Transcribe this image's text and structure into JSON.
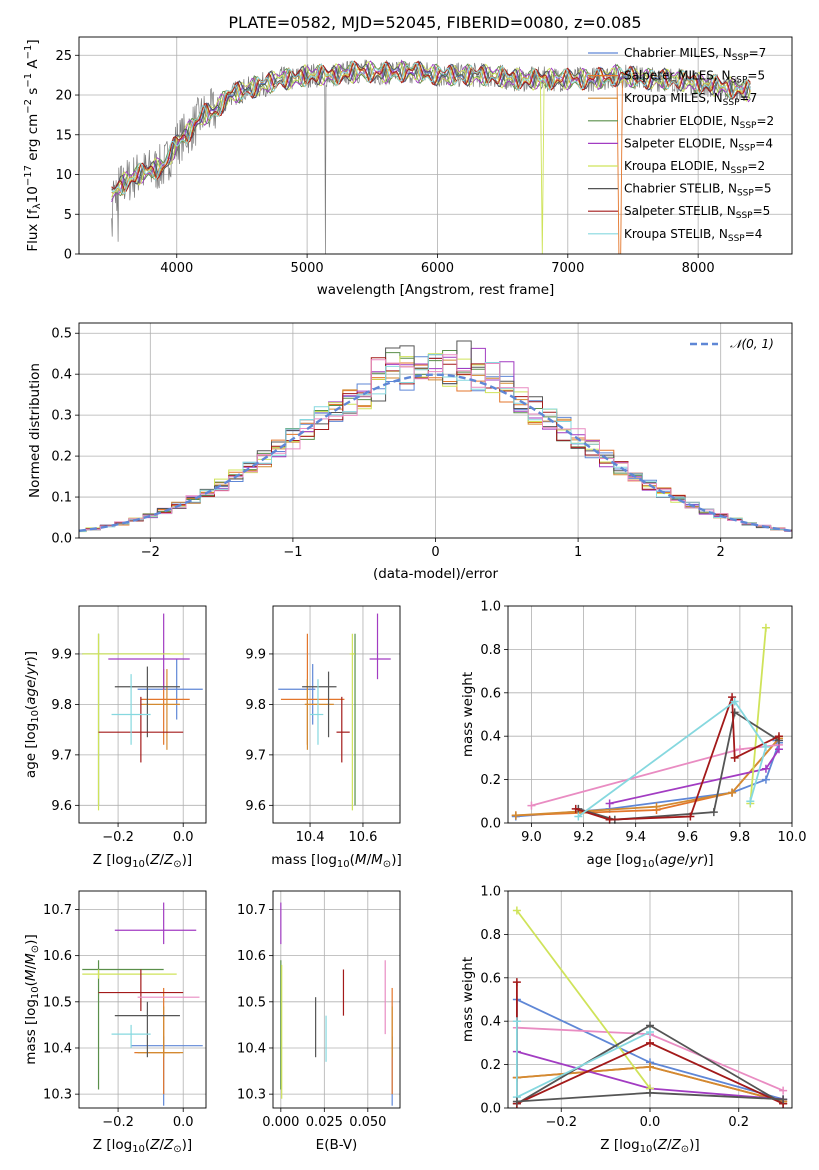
{
  "title": "PLATE=0582, MJD=52045, FIBERID=0080, z=0.085",
  "colors": [
    "#5f87d6",
    "#e3762b",
    "#d38a31",
    "#5a8f4a",
    "#a23cc2",
    "#cfe35a",
    "#555555",
    "#a31a1a",
    "#86d8df",
    "#e98cc2"
  ],
  "models": [
    {
      "name": "Chabrier MILES, N",
      "sub": "SSP",
      "n": "=7",
      "color": "#5f87d6"
    },
    {
      "name": "Salpeter MILES, N",
      "sub": "SSP",
      "n": "=5",
      "color": "#e3762b"
    },
    {
      "name": "Kroupa MILES, N",
      "sub": "SSP",
      "n": "=7",
      "color": "#d38a31"
    },
    {
      "name": "Chabrier ELODIE, N",
      "sub": "SSP",
      "n": "=2",
      "color": "#5a8f4a"
    },
    {
      "name": "Salpeter ELODIE, N",
      "sub": "SSP",
      "n": "=4",
      "color": "#a23cc2"
    },
    {
      "name": "Kroupa ELODIE, N",
      "sub": "SSP",
      "n": "=2",
      "color": "#cfe35a"
    },
    {
      "name": "Chabrier STELIB, N",
      "sub": "SSP",
      "n": "=5",
      "color": "#555555"
    },
    {
      "name": "Salpeter STELIB, N",
      "sub": "SSP",
      "n": "=5",
      "color": "#a31a1a"
    },
    {
      "name": "Kroupa STELIB, N",
      "sub": "SSP",
      "n": "=4",
      "color": "#86d8df"
    }
  ],
  "chart_data": [
    {
      "id": "spectrum",
      "type": "line",
      "xlabel": "wavelength [Angstrom, rest frame]",
      "ylabel": "Flux [f",
      "ylabel_parts": [
        "Flux [f",
        "λ",
        "10",
        "−17",
        " erg cm",
        "−2",
        " s",
        "−1",
        " A",
        "−1",
        "]"
      ],
      "xlim": [
        3250,
        8720
      ],
      "ylim": [
        0,
        27.3
      ],
      "xticks": [
        4000,
        5000,
        6000,
        7000,
        8000
      ],
      "yticks": [
        0,
        5,
        10,
        15,
        20,
        25
      ],
      "continuum": {
        "x": [
          3500,
          3600,
          3700,
          3800,
          3900,
          4000,
          4100,
          4200,
          4300,
          4400,
          4500,
          4600,
          4700,
          4800,
          4900,
          5000,
          5200,
          5400,
          5600,
          5800,
          6000,
          6200,
          6400,
          6600,
          6800,
          7000,
          7200,
          7400,
          7600,
          7800,
          8000,
          8200,
          8400
        ],
        "y": [
          7.5,
          9,
          10,
          10.5,
          11,
          14,
          15.5,
          17.5,
          18,
          20,
          20.5,
          21,
          21.5,
          22,
          22,
          22.5,
          22.5,
          23,
          22.8,
          23,
          22.5,
          22.5,
          22.5,
          22,
          22,
          22,
          22,
          22.5,
          22,
          22,
          21.5,
          21,
          20.5
        ]
      },
      "dips": [
        {
          "x": 5140,
          "y": 0
        },
        {
          "x": 6800,
          "y": 0
        },
        {
          "x": 7400,
          "y": 0
        }
      ]
    },
    {
      "id": "residuals",
      "type": "histogram",
      "xlabel": "(data-model)/error",
      "ylabel": "Normed distribution",
      "xlim": [
        -2.5,
        2.5
      ],
      "ylim": [
        0,
        0.525
      ],
      "xticks": [
        -2,
        -1,
        0,
        1,
        2
      ],
      "yticks": [
        0,
        0.1,
        0.2,
        0.3,
        0.4,
        0.5
      ],
      "legend": "N(0,1)",
      "legend_color": "#5f87d6",
      "bin_width": 0.1
    },
    {
      "id": "Z-age",
      "type": "scatter",
      "xlabel": "Z [log",
      "ylabel": "age  [log",
      "xlim": [
        -0.32,
        0.07
      ],
      "ylim": [
        9.565,
        9.995
      ],
      "xticks": [
        -0.2,
        0.0
      ],
      "yticks": [
        9.6,
        9.7,
        9.8,
        9.9
      ],
      "points": [
        {
          "x": -0.02,
          "y": 9.83,
          "xerr": [
            0.12,
            0.08
          ],
          "yerr": [
            0.06,
            0.06
          ],
          "c": "#5f87d6"
        },
        {
          "x": -0.06,
          "y": 9.81,
          "xerr": [
            0.07,
            0.08
          ],
          "yerr": [
            0.09,
            0.06
          ],
          "c": "#e3762b"
        },
        {
          "x": -0.05,
          "y": 9.8,
          "xerr": [
            0.08,
            0.04
          ],
          "yerr": [
            0.09,
            0.07
          ],
          "c": "#d38a31"
        },
        {
          "x": -0.26,
          "y": 9.9,
          "xerr": [
            0.05,
            0.22
          ],
          "yerr": [
            0.3,
            0.04
          ],
          "c": "#5a8f4a"
        },
        {
          "x": -0.06,
          "y": 9.89,
          "xerr": [
            0.17,
            0.08
          ],
          "yerr": [
            0.06,
            0.09
          ],
          "c": "#a23cc2"
        },
        {
          "x": -0.26,
          "y": 9.9,
          "xerr": [
            0.05,
            0.26
          ],
          "yerr": [
            0.31,
            0.04
          ],
          "c": "#cfe35a"
        },
        {
          "x": -0.11,
          "y": 9.835,
          "xerr": [
            0.1,
            0.1
          ],
          "yerr": [
            0.1,
            0.04
          ],
          "c": "#555555"
        },
        {
          "x": -0.13,
          "y": 9.745,
          "xerr": [
            0.13,
            0.13
          ],
          "yerr": [
            0.06,
            0.07
          ],
          "c": "#a31a1a"
        },
        {
          "x": -0.16,
          "y": 9.78,
          "xerr": [
            0.06,
            0.06
          ],
          "yerr": [
            0.06,
            0.08
          ],
          "c": "#86d8df"
        }
      ]
    },
    {
      "id": "mass-age",
      "type": "scatter",
      "xlabel": "mass [log",
      "ylabel": "",
      "xlim": [
        10.26,
        10.74
      ],
      "ylim": [
        9.565,
        9.995
      ],
      "xticks": [
        10.4,
        10.6
      ],
      "yticks": [
        9.6,
        9.7,
        9.8,
        9.9
      ],
      "points": [
        {
          "x": 10.41,
          "y": 9.83,
          "xerr": [
            0.13,
            0.01
          ],
          "yerr": [
            0.07,
            0.05
          ],
          "c": "#5f87d6"
        },
        {
          "x": 10.39,
          "y": 9.81,
          "xerr": [
            0.1,
            0.14
          ],
          "yerr": [
            0.09,
            0.13
          ],
          "c": "#e3762b"
        },
        {
          "x": 10.39,
          "y": 9.8,
          "xerr": [
            0.01,
            0.1
          ],
          "yerr": [
            0.09,
            0.05
          ],
          "c": "#d38a31"
        },
        {
          "x": 10.57,
          "y": 9.9,
          "xerr": [
            0.01,
            0.0
          ],
          "yerr": [
            0.3,
            0.04
          ],
          "c": "#5a8f4a"
        },
        {
          "x": 10.655,
          "y": 9.89,
          "xerr": [
            0.03,
            0.05
          ],
          "yerr": [
            0.04,
            0.09
          ],
          "c": "#a23cc2"
        },
        {
          "x": 10.56,
          "y": 9.9,
          "xerr": [
            0.01,
            0.01
          ],
          "yerr": [
            0.31,
            0.04
          ],
          "c": "#cfe35a"
        },
        {
          "x": 10.47,
          "y": 9.835,
          "xerr": [
            0.1,
            0.03
          ],
          "yerr": [
            0.1,
            0.03
          ],
          "c": "#555555"
        },
        {
          "x": 10.52,
          "y": 9.745,
          "xerr": [
            0.02,
            0.03
          ],
          "yerr": [
            0.06,
            0.07
          ],
          "c": "#a31a1a"
        },
        {
          "x": 10.43,
          "y": 9.78,
          "xerr": [
            0.03,
            0.02
          ],
          "yerr": [
            0.06,
            0.07
          ],
          "c": "#86d8df"
        }
      ]
    },
    {
      "id": "age-weight",
      "type": "line",
      "xlabel": "age  [log",
      "ylabel": "mass weight",
      "xlim": [
        8.91,
        10.0
      ],
      "ylim": [
        0,
        1.0
      ],
      "xticks": [
        9.0,
        9.2,
        9.4,
        9.6,
        9.8,
        10.0
      ],
      "yticks": [
        0.0,
        0.2,
        0.4,
        0.6,
        0.8,
        1.0
      ],
      "series": [
        {
          "c": "#5f87d6",
          "x": [
            8.94,
            9.3,
            9.77,
            9.9,
            9.95,
            9.94
          ],
          "y": [
            0.03,
            0.065,
            0.14,
            0.2,
            0.37,
            0.38
          ]
        },
        {
          "c": "#e3762b",
          "x": [
            8.94,
            9.48,
            9.77,
            9.95
          ],
          "y": [
            0.035,
            0.06,
            0.14,
            0.39
          ]
        },
        {
          "c": "#d38a31",
          "x": [
            8.94,
            9.48,
            9.77,
            9.95
          ],
          "y": [
            0.035,
            0.075,
            0.14,
            0.39
          ]
        },
        {
          "c": "#e98cc2",
          "x": [
            9.0,
            9.8,
            9.95
          ],
          "y": [
            0.08,
            0.34,
            0.36
          ]
        },
        {
          "c": "#a23cc2",
          "x": [
            9.3,
            9.9,
            9.95
          ],
          "y": [
            0.09,
            0.25,
            0.34
          ]
        },
        {
          "c": "#cfe35a",
          "x": [
            9.84,
            9.9
          ],
          "y": [
            0.09,
            0.9
          ]
        },
        {
          "c": "#555555",
          "x": [
            9.18,
            9.32,
            9.7,
            9.78,
            9.95
          ],
          "y": [
            0.065,
            0.015,
            0.05,
            0.51,
            0.38
          ]
        },
        {
          "c": "#a31a1a",
          "x": [
            9.17,
            9.3,
            9.61,
            9.77,
            9.78,
            9.95
          ],
          "y": [
            0.065,
            0.015,
            0.03,
            0.58,
            0.3,
            0.4
          ]
        },
        {
          "c": "#86d8df",
          "x": [
            9.18,
            9.78,
            9.9,
            9.84
          ],
          "y": [
            0.03,
            0.56,
            0.35,
            0.1
          ]
        }
      ]
    },
    {
      "id": "Z-mass",
      "type": "scatter",
      "xlabel": "Z [log",
      "ylabel": "mass [log",
      "xlim": [
        -0.32,
        0.07
      ],
      "ylim": [
        10.27,
        10.74
      ],
      "xticks": [
        -0.2,
        0.0
      ],
      "yticks": [
        10.3,
        10.4,
        10.5,
        10.6,
        10.7
      ],
      "points": [
        {
          "x": -0.06,
          "y": 10.405,
          "xerr": [
            0.1,
            0.12
          ],
          "yerr": [
            0.13,
            0.02
          ],
          "c": "#5f87d6"
        },
        {
          "x": -0.06,
          "y": 10.39,
          "xerr": [
            0.09,
            0.05
          ],
          "yerr": [
            0.09,
            0.14
          ],
          "c": "#e3762b"
        },
        {
          "x": -0.06,
          "y": 10.39,
          "xerr": [
            0.08,
            0.06
          ],
          "yerr": [
            0.01,
            0.1
          ],
          "c": "#d38a31"
        },
        {
          "x": -0.26,
          "y": 10.57,
          "xerr": [
            0.05,
            0.2
          ],
          "yerr": [
            0.26,
            0.02
          ],
          "c": "#5a8f4a"
        },
        {
          "x": -0.06,
          "y": 10.655,
          "xerr": [
            0.15,
            0.1
          ],
          "yerr": [
            0.03,
            0.06
          ],
          "c": "#a23cc2"
        },
        {
          "x": -0.26,
          "y": 10.56,
          "xerr": [
            0.05,
            0.24
          ],
          "yerr": [
            0.01,
            0.01
          ],
          "c": "#cfe35a"
        },
        {
          "x": -0.11,
          "y": 10.47,
          "xerr": [
            0.1,
            0.1
          ],
          "yerr": [
            0.09,
            0.03
          ],
          "c": "#555555"
        },
        {
          "x": -0.13,
          "y": 10.52,
          "xerr": [
            0.13,
            0.13
          ],
          "yerr": [
            0.04,
            0.05
          ],
          "c": "#a31a1a"
        },
        {
          "x": -0.16,
          "y": 10.43,
          "xerr": [
            0.06,
            0.06
          ],
          "yerr": [
            0.03,
            0.02
          ],
          "c": "#86d8df"
        },
        {
          "x": -0.08,
          "y": 10.51,
          "xerr": [
            0.06,
            0.13
          ],
          "yerr": [
            0.0,
            0.0
          ],
          "c": "#e98cc2"
        }
      ]
    },
    {
      "id": "ebv-mass",
      "type": "scatter",
      "xlabel": "E(B-V)",
      "ylabel": "",
      "xlim": [
        -0.0045,
        0.0685
      ],
      "ylim": [
        10.27,
        10.74
      ],
      "xticks": [
        0.0,
        0.025,
        0.05
      ],
      "xticklabels": [
        "0.000",
        "0.025",
        "0.050"
      ],
      "yticks": [
        10.3,
        10.4,
        10.5,
        10.6,
        10.7
      ],
      "points": [
        {
          "x": 0.064,
          "y": 10.405,
          "yerr": [
            0.13,
            0.02
          ],
          "c": "#5f87d6"
        },
        {
          "x": 0.064,
          "y": 10.39,
          "yerr": [
            0.09,
            0.14
          ],
          "c": "#e3762b"
        },
        {
          "x": 0.064,
          "y": 10.39,
          "yerr": [
            0.01,
            0.1
          ],
          "c": "#d38a31"
        },
        {
          "x": 0.0,
          "y": 10.57,
          "yerr": [
            0.26,
            0.02
          ],
          "c": "#5a8f4a"
        },
        {
          "x": 0.0,
          "y": 10.655,
          "yerr": [
            0.03,
            0.06
          ],
          "c": "#a23cc2"
        },
        {
          "x": 0.0005,
          "y": 10.5,
          "yerr": [
            0.21,
            0.08
          ],
          "c": "#cfe35a"
        },
        {
          "x": 0.02,
          "y": 10.47,
          "yerr": [
            0.09,
            0.04
          ],
          "c": "#555555"
        },
        {
          "x": 0.036,
          "y": 10.52,
          "yerr": [
            0.05,
            0.05
          ],
          "c": "#a31a1a"
        },
        {
          "x": 0.026,
          "y": 10.42,
          "yerr": [
            0.05,
            0.05
          ],
          "c": "#86d8df"
        },
        {
          "x": 0.06,
          "y": 10.51,
          "yerr": [
            0.08,
            0.08
          ],
          "c": "#e98cc2"
        }
      ]
    },
    {
      "id": "Z-weight",
      "type": "line",
      "xlabel": "Z [log",
      "ylabel": "mass weight",
      "xlim": [
        -0.32,
        0.32
      ],
      "ylim": [
        0,
        1.0
      ],
      "xticks": [
        -0.2,
        0.0,
        0.2
      ],
      "yticks": [
        0.0,
        0.2,
        0.4,
        0.6,
        0.8,
        1.0
      ],
      "series": [
        {
          "c": "#5f87d6",
          "x": [
            -0.3,
            -0.3,
            0.0,
            0.3
          ],
          "y": [
            0.14,
            0.5,
            0.21,
            0.04
          ]
        },
        {
          "c": "#e3762b",
          "x": [
            -0.3,
            0.0,
            0.3
          ],
          "y": [
            0.14,
            0.19,
            0.03
          ]
        },
        {
          "c": "#d38a31",
          "x": [
            -0.3,
            0.0,
            0.3
          ],
          "y": [
            0.14,
            0.19,
            0.03
          ]
        },
        {
          "c": "#e98cc2",
          "x": [
            -0.3,
            0.0,
            0.3
          ],
          "y": [
            0.37,
            0.34,
            0.08
          ]
        },
        {
          "c": "#a23cc2",
          "x": [
            -0.3,
            0.0,
            0.3
          ],
          "y": [
            0.26,
            0.09,
            0.04
          ]
        },
        {
          "c": "#cfe35a",
          "x": [
            -0.3,
            0.0
          ],
          "y": [
            0.91,
            0.09
          ]
        },
        {
          "c": "#555555",
          "x": [
            -0.3,
            0.0,
            0.3
          ],
          "y": [
            0.02,
            0.38,
            0.02
          ]
        },
        {
          "c": "#a31a1a",
          "x": [
            -0.3,
            -0.3,
            0.0,
            0.3
          ],
          "y": [
            0.58,
            0.02,
            0.3,
            0.02
          ]
        },
        {
          "c": "#86d8df",
          "x": [
            -0.3,
            -0.3,
            0.0
          ],
          "y": [
            0.4,
            0.05,
            0.35
          ]
        },
        {
          "c": "#555555",
          "x": [
            -0.3,
            0.0,
            0.3
          ],
          "y": [
            0.03,
            0.07,
            0.04
          ]
        }
      ]
    }
  ]
}
